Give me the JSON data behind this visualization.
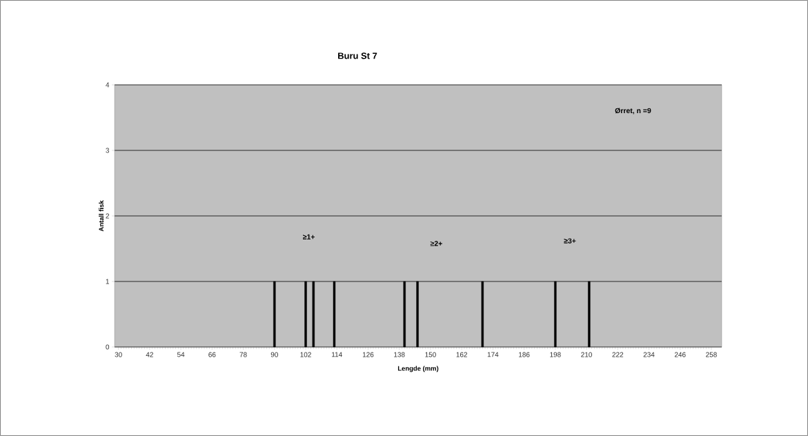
{
  "chart_data": {
    "type": "bar",
    "title": "Buru St 7",
    "xlabel": "Lengde  (mm)",
    "ylabel": "Antall  fisk",
    "x": [
      90,
      102,
      105,
      113,
      140,
      145,
      170,
      198,
      211
    ],
    "values": [
      1,
      1,
      1,
      1,
      1,
      1,
      1,
      1,
      1
    ],
    "color": "#000000",
    "xlim": [
      28.5,
      262
    ],
    "xticks": [
      30,
      42,
      54,
      66,
      78,
      90,
      102,
      114,
      126,
      138,
      150,
      162,
      174,
      186,
      198,
      210,
      222,
      234,
      246,
      258
    ],
    "ylim": [
      0,
      4
    ],
    "yticks": [
      0,
      1,
      2,
      3,
      4
    ],
    "grid": "y",
    "annotations": [
      "Ørret, n =9",
      "≥1+",
      "≥2+",
      "≥3+"
    ]
  }
}
